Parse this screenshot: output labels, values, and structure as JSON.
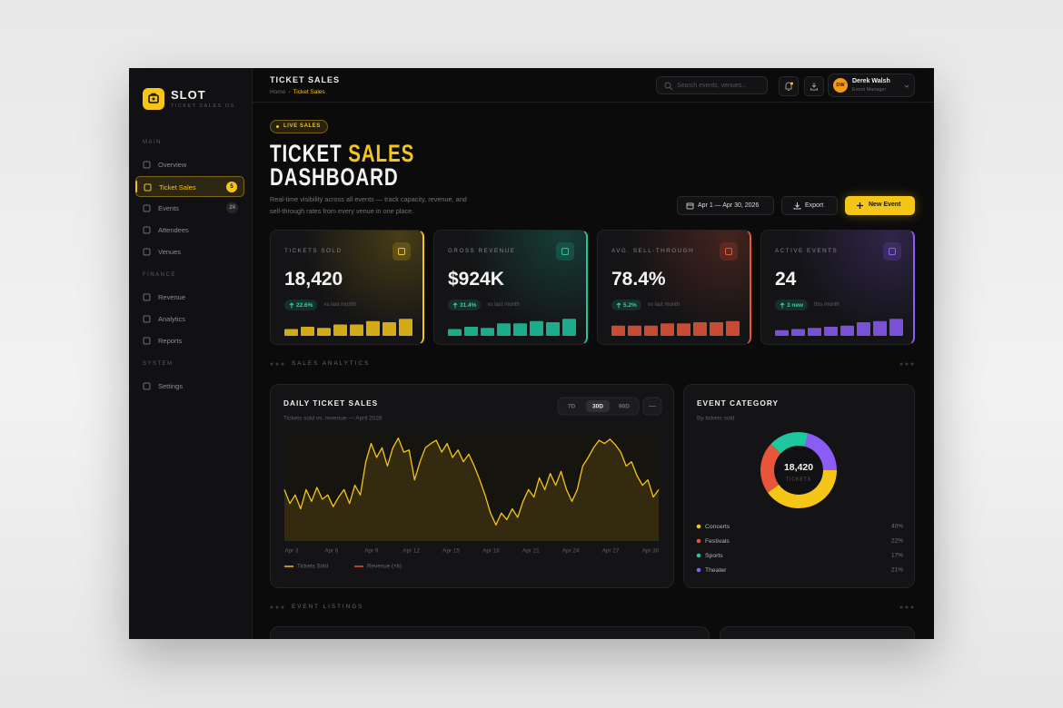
{
  "sidebar": {
    "brand": "SLOT",
    "tagline": "TICKET SALES OS",
    "sections": [
      {
        "label": "MAIN",
        "items": [
          {
            "label": "Overview"
          },
          {
            "label": "Ticket Sales",
            "badge": "5",
            "active": true
          },
          {
            "label": "Events",
            "badge": "24"
          },
          {
            "label": "Attendees"
          },
          {
            "label": "Venues"
          }
        ]
      },
      {
        "label": "FINANCE",
        "items": [
          {
            "label": "Revenue"
          },
          {
            "label": "Analytics"
          },
          {
            "label": "Reports"
          }
        ]
      },
      {
        "label": "SYSTEM",
        "items": [
          {
            "label": "Settings"
          }
        ]
      }
    ]
  },
  "header": {
    "title": "TICKET SALES",
    "breadcrumb": [
      "Home",
      "›",
      "Ticket Sales"
    ],
    "search_placeholder": "Search events, venues...",
    "user": {
      "initials": "DW",
      "name": "Derek Walsh",
      "role": "Event Manager"
    }
  },
  "hero": {
    "badge": "LIVE SALES",
    "title": {
      "line1": "TICKET",
      "highlight": "SALES",
      "line2": "DASHBOARD"
    },
    "description": "Real-time visibility across all events — track capacity, revenue, and sell-through rates from every venue in one place.",
    "date_range": "Apr 1 — Apr 30, 2026",
    "export": "Export",
    "new_event": "New Event"
  },
  "kpis": [
    {
      "label": "TICKETS SOLD",
      "value": "18,420",
      "change": "22.6%",
      "note": "vs last month",
      "color": "#f5c518",
      "bars": {
        "values": [
          6,
          8,
          7,
          10,
          10,
          13,
          12,
          15
        ],
        "ylim": [
          0,
          16
        ]
      }
    },
    {
      "label": "GROSS REVENUE",
      "value": "$924K",
      "change": "31.4%",
      "note": "vs last month",
      "color": "#1fc7a0",
      "bars": {
        "values": [
          6,
          8,
          7,
          11,
          11,
          13,
          12,
          15
        ],
        "ylim": [
          0,
          16
        ]
      }
    },
    {
      "label": "AVG. SELL-THROUGH",
      "value": "78.4%",
      "change": "5.2%",
      "note": "vs last month",
      "color": "#e8553a",
      "bars": {
        "values": [
          9,
          9,
          9,
          11,
          11,
          12,
          12,
          13
        ],
        "ylim": [
          0,
          16
        ]
      }
    },
    {
      "label": "ACTIVE EVENTS",
      "value": "24",
      "change": "3 new",
      "note": "this month",
      "color": "#8b5cf6",
      "bars": {
        "values": [
          5,
          6,
          7,
          8,
          9,
          12,
          13,
          15
        ],
        "ylim": [
          0,
          16
        ]
      }
    }
  ],
  "sections": [
    "SALES ANALYTICS",
    "EVENT LISTINGS"
  ],
  "chart_data": [
    {
      "type": "line",
      "title": "DAILY TICKET SALES",
      "subtitle": "Tickets sold vs. revenue — April 2026",
      "ranges": [
        "7D",
        "30D",
        "90D"
      ],
      "active_range": "30D",
      "xtick_labels": [
        "Apr 3",
        "Apr 6",
        "Apr 9",
        "Apr 12",
        "Apr 15",
        "Apr 18",
        "Apr 21",
        "Apr 24",
        "Apr 27",
        "Apr 30"
      ],
      "ylim": [
        0,
        100
      ],
      "series": [
        {
          "name": "Tickets Sold",
          "color": "#f5c518",
          "values": [
            48,
            35,
            43,
            30,
            48,
            37,
            50,
            39,
            43,
            32,
            41,
            48,
            35,
            52,
            43,
            74,
            91,
            78,
            87,
            70,
            87,
            96,
            83,
            85,
            57,
            74,
            87,
            91,
            94,
            83,
            91,
            78,
            85,
            74,
            81,
            70,
            57,
            43,
            26,
            15,
            26,
            20,
            30,
            22,
            37,
            48,
            41,
            59,
            48,
            63,
            52,
            65,
            48,
            37,
            48,
            70,
            78,
            87,
            94,
            91,
            95,
            90,
            83,
            70,
            74,
            61,
            52,
            57,
            41,
            48
          ]
        },
        {
          "name": "Revenue (×k)",
          "color": "#e8553a"
        }
      ]
    },
    {
      "type": "donut",
      "title": "EVENT CATEGORY",
      "subtitle": "By tickets sold",
      "center_value": "18,420",
      "center_label": "TICKETS",
      "categories": [
        "Concerts",
        "Festivals",
        "Sports",
        "Theater"
      ],
      "values": [
        40,
        22,
        17,
        21
      ],
      "value_labels": [
        "40%",
        "22%",
        "17%",
        "21%"
      ],
      "colors": [
        "#f5c518",
        "#e8553a",
        "#1fc7a0",
        "#8b5cf6"
      ]
    }
  ]
}
